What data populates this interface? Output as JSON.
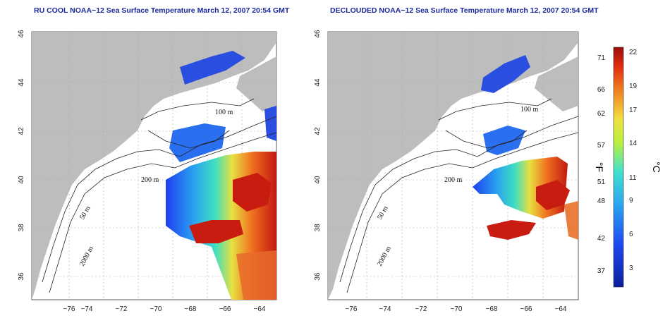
{
  "panels": [
    {
      "title": "RU COOL NOAA−12 Sea Surface Temperature March 12, 2007 20:54 GMT",
      "contour_labels": [
        "100 m",
        "200 m",
        "50 m",
        "2000 m"
      ]
    },
    {
      "title": "DECLOUDED NOAA−12 Sea Surface Temperature March 12, 2007 20:54 GMT",
      "contour_labels": [
        "100 m",
        "200 m",
        "50 m",
        "2000 m"
      ]
    }
  ],
  "x_ticks": [
    "−76",
    "−74",
    "−72",
    "−70",
    "−68",
    "−66",
    "−64"
  ],
  "y_ticks": [
    "36",
    "38",
    "40",
    "42",
    "44",
    "46"
  ],
  "colorbar": {
    "fahrenheit_label": "°F",
    "celsius_label": "°C",
    "fahrenheit_ticks": [
      "71",
      "66",
      "62",
      "57",
      "51",
      "48",
      "42",
      "37"
    ],
    "celsius_ticks": [
      "22",
      "19",
      "17",
      "14",
      "11",
      "9",
      "6",
      "3"
    ]
  },
  "colors": {
    "land": "#bdbdbd",
    "title": "#1c2a9c",
    "cold": "#1a3fd6",
    "warm": "#c81c10"
  }
}
